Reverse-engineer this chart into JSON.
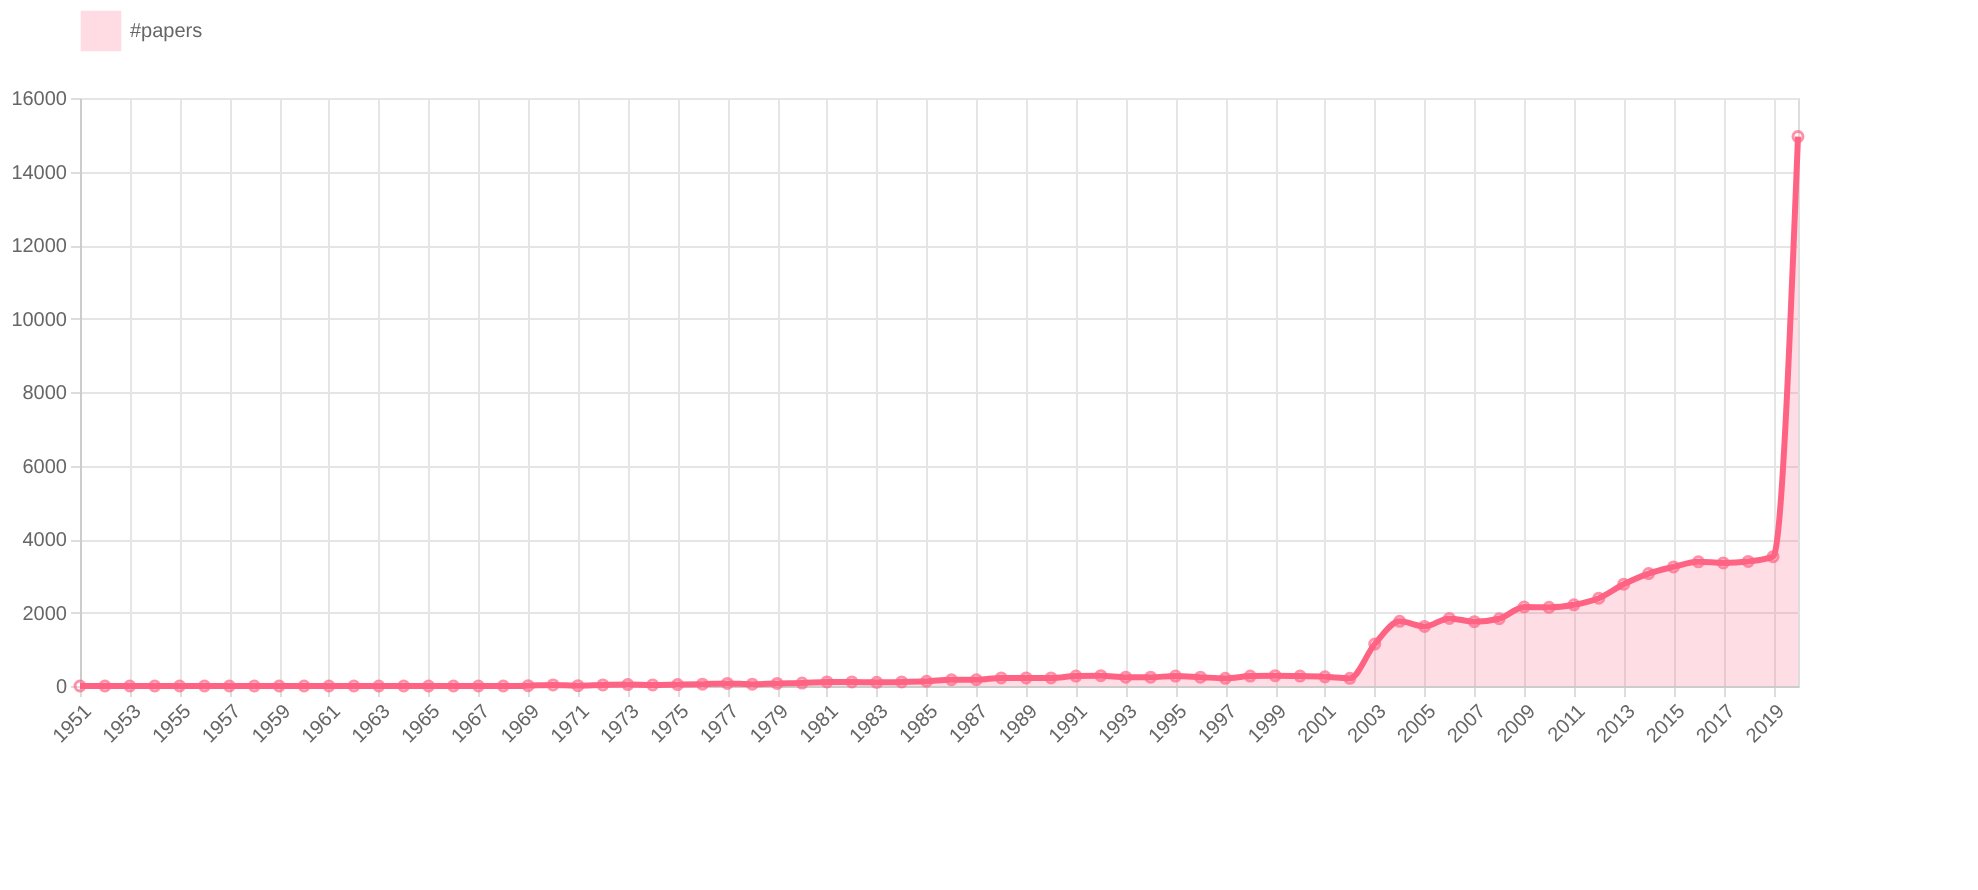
{
  "chart_data": {
    "type": "area",
    "x": [
      1951,
      1952,
      1953,
      1954,
      1955,
      1956,
      1957,
      1958,
      1959,
      1960,
      1961,
      1962,
      1963,
      1964,
      1965,
      1966,
      1967,
      1968,
      1969,
      1970,
      1971,
      1972,
      1973,
      1974,
      1975,
      1976,
      1977,
      1978,
      1979,
      1980,
      1981,
      1982,
      1983,
      1984,
      1985,
      1986,
      1987,
      1988,
      1989,
      1990,
      1991,
      1992,
      1993,
      1994,
      1995,
      1996,
      1997,
      1998,
      1999,
      2000,
      2001,
      2002,
      2003,
      2004,
      2005,
      2006,
      2007,
      2008,
      2009,
      2010,
      2011,
      2012,
      2013,
      2014,
      2015,
      2016,
      2017,
      2018,
      2019,
      2020
    ],
    "series": [
      {
        "name": "#papers",
        "color": "#ff6384",
        "values": [
          0,
          0,
          0,
          0,
          0,
          0,
          0,
          0,
          0,
          0,
          0,
          0,
          0,
          0,
          0,
          0,
          0,
          0,
          10,
          30,
          10,
          30,
          40,
          30,
          40,
          50,
          70,
          50,
          70,
          80,
          110,
          110,
          100,
          110,
          130,
          170,
          170,
          220,
          220,
          220,
          270,
          280,
          240,
          240,
          270,
          240,
          210,
          270,
          280,
          270,
          250,
          210,
          1140,
          1760,
          1620,
          1840,
          1750,
          1830,
          2150,
          2140,
          2210,
          2390,
          2770,
          3060,
          3240,
          3380,
          3350,
          3390,
          3520,
          14950
        ]
      }
    ],
    "xlim": [
      1951,
      2020
    ],
    "xticks": [
      1951,
      1953,
      1955,
      1957,
      1959,
      1961,
      1963,
      1965,
      1967,
      1969,
      1971,
      1973,
      1975,
      1977,
      1979,
      1981,
      1983,
      1985,
      1987,
      1989,
      1991,
      1993,
      1995,
      1997,
      1999,
      2001,
      2003,
      2005,
      2007,
      2009,
      2011,
      2013,
      2015,
      2017,
      2019
    ],
    "ylim": [
      0,
      16000
    ],
    "yticks": [
      0,
      2000,
      4000,
      6000,
      8000,
      10000,
      12000,
      14000,
      16000
    ],
    "grid": true,
    "legend": "top",
    "marker": "circle",
    "line_style": "solid"
  }
}
